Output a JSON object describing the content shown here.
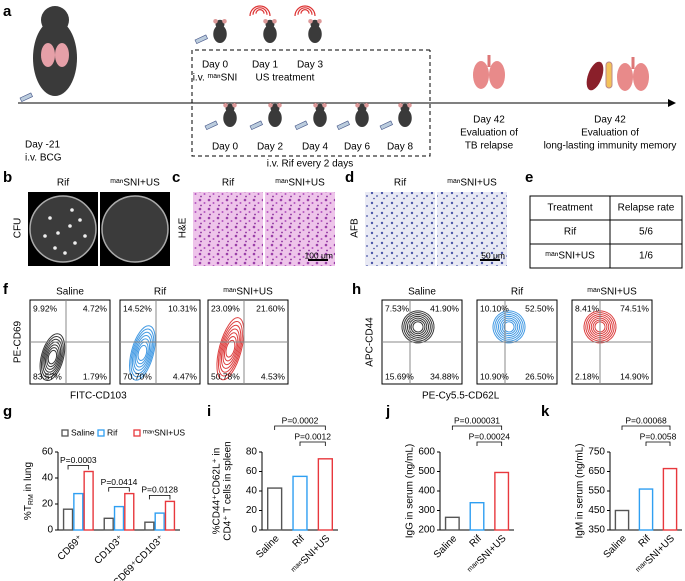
{
  "figure": {
    "a": {
      "label": "a",
      "day_bcg": "Day -21",
      "bcg": "i.v. BCG",
      "top_days": [
        "Day 0",
        "Day 1",
        "Day 3"
      ],
      "sni": "i.v. ᵐᵃⁿSNI",
      "us": "US treatment",
      "bottom_days": [
        "Day 0",
        "Day 2",
        "Day 4",
        "Day 6",
        "Day 8"
      ],
      "rif": "i.v. Rif every 2 days",
      "relapse": [
        "Day 42",
        "Evaluation of",
        "TB relapse"
      ],
      "memory": [
        "Day 42",
        "Evaluation of",
        "long-lasting immunity memory"
      ]
    },
    "b": {
      "label": "b",
      "ylabel": "CFU",
      "groups": [
        "Rif",
        "ᵐᵃⁿSNI+US"
      ]
    },
    "c": {
      "label": "c",
      "ylabel": "H&E",
      "groups": [
        "Rif",
        "ᵐᵃⁿSNI+US"
      ],
      "scale": "100 μm"
    },
    "d": {
      "label": "d",
      "ylabel": "AFB",
      "groups": [
        "Rif",
        "ᵐᵃⁿSNI+US"
      ],
      "scale": "50 μm"
    },
    "e": {
      "label": "e",
      "header": [
        "Treatment",
        "Relapse rate"
      ],
      "rows": [
        [
          "Rif",
          "5/6"
        ],
        [
          "ᵐᵃⁿSNI+US",
          "1/6"
        ]
      ]
    },
    "f": {
      "label": "f",
      "ylabel": "PE-CD69",
      "xlabel": "FITC-CD103",
      "plots": [
        {
          "name": "Saline",
          "quadrants": [
            "9.92%",
            "4.72%",
            "83.57%",
            "1.79%"
          ]
        },
        {
          "name": "Rif",
          "quadrants": [
            "14.52%",
            "10.31%",
            "70.70%",
            "4.47%"
          ]
        },
        {
          "name": "ᵐᵃⁿSNI+US",
          "quadrants": [
            "23.09%",
            "21.60%",
            "50.78%",
            "4.53%"
          ]
        }
      ]
    },
    "h": {
      "label": "h",
      "ylabel": "APC-CD44",
      "xlabel": "PE-Cy5.5-CD62L",
      "plots": [
        {
          "name": "Saline",
          "quadrants": [
            "7.53%",
            "41.90%",
            "15.69%",
            "34.88%"
          ]
        },
        {
          "name": "Rif",
          "quadrants": [
            "10.10%",
            "52.50%",
            "10.90%",
            "26.50%"
          ]
        },
        {
          "name": "ᵐᵃⁿSNI+US",
          "quadrants": [
            "8.41%",
            "74.51%",
            "2.18%",
            "14.90%"
          ]
        }
      ]
    }
  },
  "chart_data": [
    {
      "type": "bar",
      "label": "g",
      "ylabel": {
        "main": "%T",
        "sub": "RM",
        "rest": " in lung"
      },
      "categories": [
        "CD69⁺",
        "CD103⁺",
        "CD69⁺CD103⁺"
      ],
      "series": [
        {
          "name": "Saline",
          "color": "#555555",
          "values": [
            16,
            9,
            6
          ]
        },
        {
          "name": "Rif",
          "color": "#2f9ff2",
          "values": [
            28,
            18,
            13
          ]
        },
        {
          "name": "ᵐᵃⁿSNI+US",
          "color": "#e8383d",
          "values": [
            45,
            28,
            22
          ]
        }
      ],
      "ylim": [
        0,
        60
      ],
      "yticks": [
        0,
        20,
        40,
        60
      ],
      "legend": "top",
      "annotations": [
        "P=0.0003",
        "P=0.0414",
        "P=0.0128"
      ]
    },
    {
      "type": "bar",
      "label": "i",
      "ylabel": [
        "%CD44⁺CD62L⁺ in",
        "CD4⁺ T cells in spleen"
      ],
      "categories": [
        "Saline",
        "Rif",
        "ᵐᵃⁿSNI+US"
      ],
      "values": [
        43,
        55,
        73
      ],
      "colors": [
        "#555555",
        "#2f9ff2",
        "#e8383d"
      ],
      "ylim": [
        0,
        80
      ],
      "yticks": [
        0,
        20,
        40,
        60,
        80
      ],
      "annotations": [
        "P=0.0002",
        "P=0.0012"
      ]
    },
    {
      "type": "bar",
      "label": "j",
      "ylabel": "IgG in serum (ng/mL)",
      "categories": [
        "Saline",
        "Rif",
        "ᵐᵃⁿSNI+US"
      ],
      "values": [
        265,
        340,
        495
      ],
      "colors": [
        "#555555",
        "#2f9ff2",
        "#e8383d"
      ],
      "ylim": [
        200,
        600
      ],
      "yticks": [
        200,
        300,
        400,
        500,
        600
      ],
      "annotations": [
        "P=0.000031",
        "P=0.00024"
      ]
    },
    {
      "type": "bar",
      "label": "k",
      "ylabel": "IgM in serum (ng/mL)",
      "categories": [
        "Saline",
        "Rif",
        "ᵐᵃⁿSNI+US"
      ],
      "values": [
        450,
        560,
        665
      ],
      "colors": [
        "#555555",
        "#2f9ff2",
        "#e8383d"
      ],
      "ylim": [
        350,
        750
      ],
      "yticks": [
        350,
        450,
        550,
        650,
        750
      ],
      "annotations": [
        "P=0.00068",
        "P=0.0058"
      ]
    }
  ]
}
